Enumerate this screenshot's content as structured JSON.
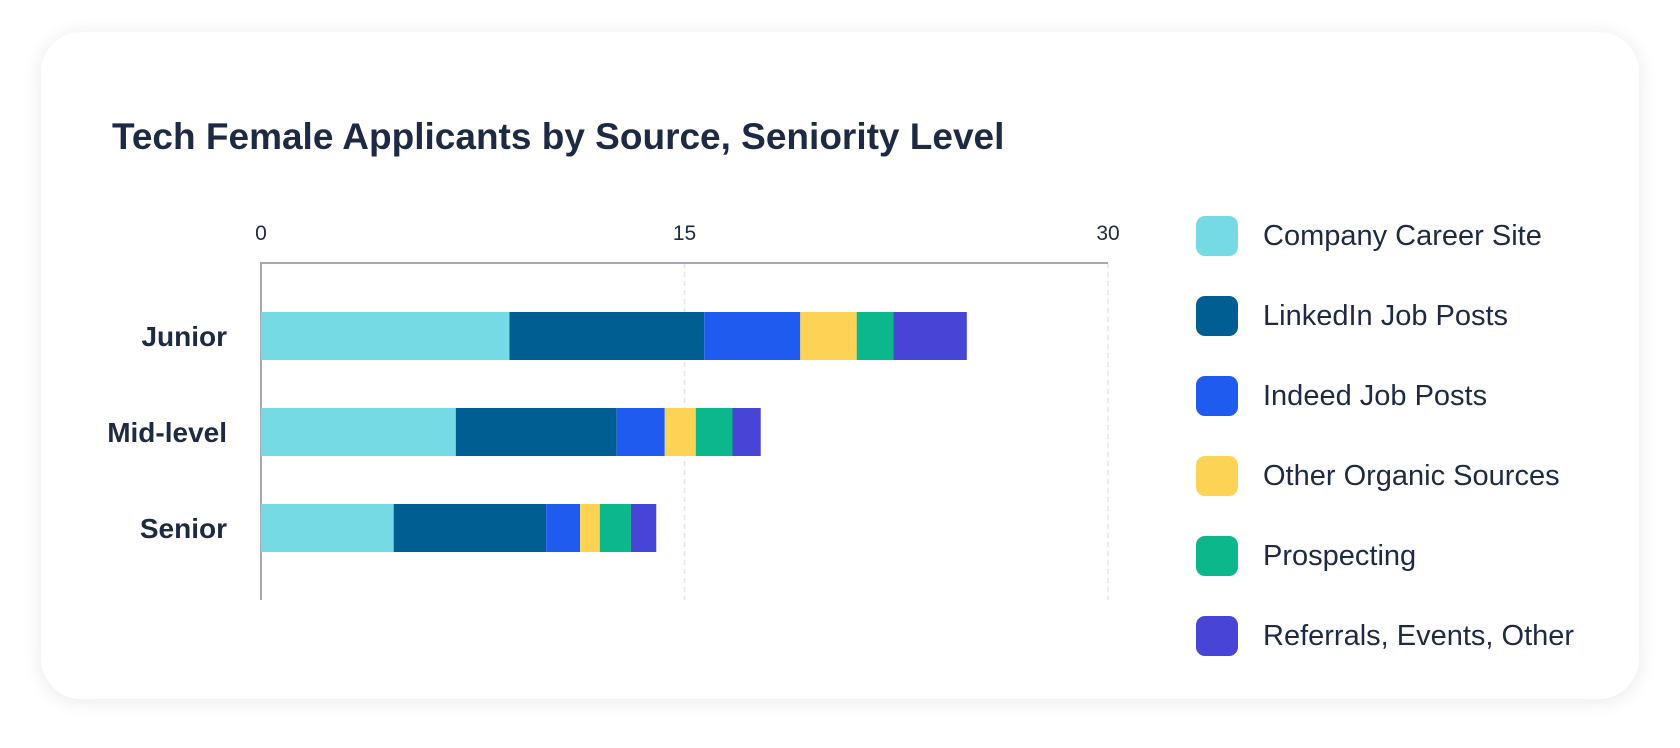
{
  "chart_data": {
    "type": "bar",
    "orientation": "horizontal",
    "stacked": true,
    "title": "Tech Female Applicants by Source, Seniority Level",
    "categories": [
      "Junior",
      "Mid-level",
      "Senior"
    ],
    "xlim": [
      0,
      30
    ],
    "xticks": [
      "0",
      "15",
      "30"
    ],
    "grid": "vertical dashed",
    "legend_position": "right",
    "series": [
      {
        "name": "Company Career Site",
        "color": "#76dae5",
        "values": [
          8.8,
          6.9,
          4.7
        ]
      },
      {
        "name": "LinkedIn Job Posts",
        "color": "#005e92",
        "values": [
          6.9,
          5.7,
          5.4
        ]
      },
      {
        "name": "Indeed Job Posts",
        "color": "#1f5bee",
        "values": [
          3.4,
          1.7,
          1.2
        ]
      },
      {
        "name": "Other Organic Sources",
        "color": "#fdd355",
        "values": [
          2.0,
          1.1,
          0.7
        ]
      },
      {
        "name": "Prospecting",
        "color": "#0cb78b",
        "values": [
          1.3,
          1.3,
          1.1
        ]
      },
      {
        "name": "Referrals, Events, Other",
        "color": "#4845d6",
        "values": [
          2.6,
          1.0,
          0.9
        ]
      }
    ]
  }
}
